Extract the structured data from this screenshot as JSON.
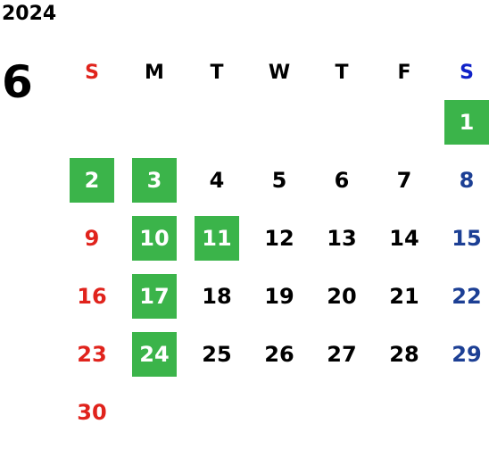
{
  "calendar": {
    "year": "2024",
    "month": "6",
    "weekdays": [
      {
        "label": "S",
        "color": "#e0231c"
      },
      {
        "label": "M",
        "color": "#000000"
      },
      {
        "label": "T",
        "color": "#000000"
      },
      {
        "label": "W",
        "color": "#000000"
      },
      {
        "label": "T",
        "color": "#000000"
      },
      {
        "label": "F",
        "color": "#000000"
      },
      {
        "label": "S",
        "color": "#1022c8"
      }
    ],
    "first_weekday_offset": 6,
    "days": [
      "1",
      "2",
      "3",
      "4",
      "5",
      "6",
      "7",
      "8",
      "9",
      "10",
      "11",
      "12",
      "13",
      "14",
      "15",
      "16",
      "17",
      "18",
      "19",
      "20",
      "21",
      "22",
      "23",
      "24",
      "25",
      "26",
      "27",
      "28",
      "29",
      "30"
    ],
    "highlighted_days": [
      "1",
      "2",
      "3",
      "10",
      "11",
      "17",
      "24"
    ],
    "colors": {
      "highlight": "#3bb44a",
      "sunday": "#e0231c",
      "saturday": "#1c3f94",
      "weekday": "#000000"
    }
  }
}
